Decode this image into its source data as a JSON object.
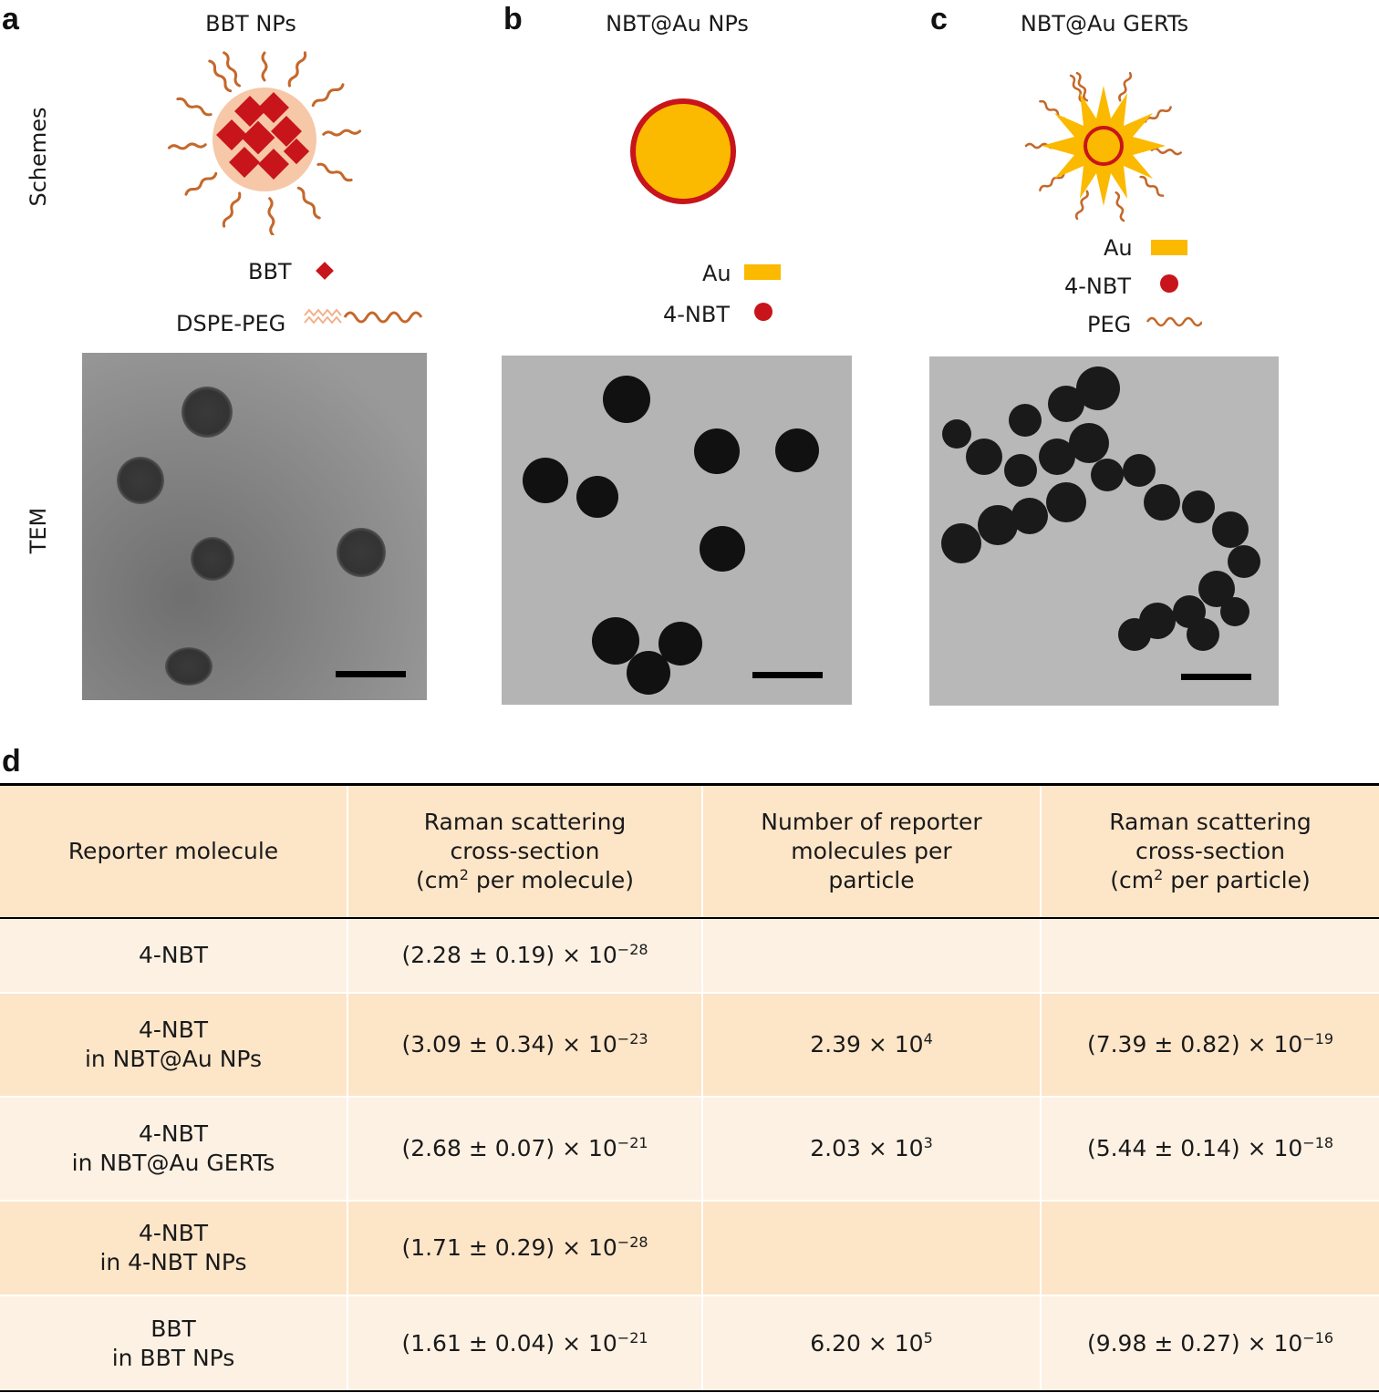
{
  "panels": {
    "a": {
      "letter": "a",
      "title": "BBT NPs"
    },
    "b": {
      "letter": "b",
      "title": "NBT@Au NPs"
    },
    "c": {
      "letter": "c",
      "title": "NBT@Au GERTs"
    },
    "d": {
      "letter": "d"
    }
  },
  "row_labels": {
    "schemes": "Schemes",
    "tem": "TEM"
  },
  "legends": {
    "a": [
      {
        "label": "BBT"
      },
      {
        "label": "DSPE-PEG"
      }
    ],
    "b": [
      {
        "label": "Au"
      },
      {
        "label": "4-NBT"
      }
    ],
    "c": [
      {
        "label": "Au"
      },
      {
        "label": "4-NBT"
      },
      {
        "label": "PEG"
      }
    ]
  },
  "colors": {
    "bbt_red": "#c8141b",
    "gold": "#fbb900",
    "peg_orange": "#c4682b",
    "shell_red": "#c8141b",
    "table_dark": "#fde5c8",
    "table_light": "#fdf1e4"
  },
  "table": {
    "headers": {
      "c1": "Reporter molecule",
      "c2": [
        "Raman scattering",
        "cross-section",
        "(cm",
        "2",
        " per molecule)"
      ],
      "c3": [
        "Number of reporter",
        "molecules per",
        "particle"
      ],
      "c4": [
        "Raman scattering",
        "cross-section",
        "(cm",
        "2",
        " per particle)"
      ]
    },
    "rows": [
      {
        "mol": [
          "4-NBT"
        ],
        "xs_mol": [
          "(2.28 ± 0.19) × 10",
          "−28"
        ],
        "num": [
          "",
          ""
        ],
        "xs_part": [
          "",
          ""
        ]
      },
      {
        "mol": [
          "4-NBT",
          "in NBT@Au NPs"
        ],
        "xs_mol": [
          "(3.09 ± 0.34) × 10",
          "−23"
        ],
        "num": [
          "2.39 × 10",
          "4"
        ],
        "xs_part": [
          "(7.39 ± 0.82) × 10",
          "−19"
        ]
      },
      {
        "mol": [
          "4-NBT",
          "in NBT@Au GERTs"
        ],
        "xs_mol": [
          "(2.68 ± 0.07) × 10",
          "−21"
        ],
        "num": [
          "2.03 × 10",
          "3"
        ],
        "xs_part": [
          "(5.44 ± 0.14) × 10",
          "−18"
        ]
      },
      {
        "mol": [
          "4-NBT",
          "in 4-NBT NPs"
        ],
        "xs_mol": [
          "(1.71 ± 0.29) × 10",
          "−28"
        ],
        "num": [
          "",
          ""
        ],
        "xs_part": [
          "",
          ""
        ]
      },
      {
        "mol": [
          "BBT",
          "in BBT NPs"
        ],
        "xs_mol": [
          "(1.61 ± 0.04) × 10",
          "−21"
        ],
        "num": [
          "6.20 × 10",
          "5"
        ],
        "xs_part": [
          "(9.98 ± 0.27) × 10",
          "−16"
        ]
      }
    ]
  }
}
